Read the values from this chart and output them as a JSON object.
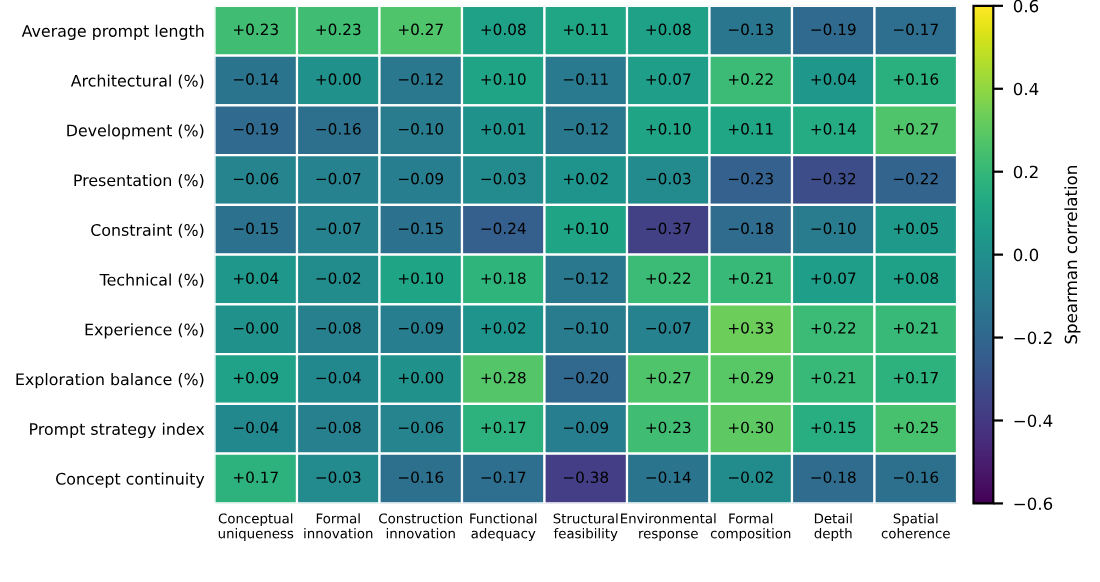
{
  "chart_data": {
    "type": "heatmap",
    "clabel": "Spearman correlation",
    "categories": [
      "Conceptual\nuniqueness",
      "Formal\ninnovation",
      "Construction\ninnovation",
      "Functional\nadequacy",
      "Structural\nfeasibility",
      "Environmental\nresponse",
      "Formal\ncomposition",
      "Detail\ndepth",
      "Spatial\ncoherence"
    ],
    "y_categories": [
      "Average prompt length",
      "Architectural (%)",
      "Development (%)",
      "Presentation (%)",
      "Constraint (%)",
      "Technical (%)",
      "Experience (%)",
      "Exploration balance (%)",
      "Prompt strategy index",
      "Concept continuity"
    ],
    "cells": [
      [
        0.23,
        0.23,
        0.27,
        0.08,
        0.11,
        0.08,
        -0.13,
        -0.19,
        -0.17
      ],
      [
        -0.14,
        0.0,
        -0.12,
        0.1,
        -0.11,
        0.07,
        0.22,
        0.04,
        0.16
      ],
      [
        -0.19,
        -0.16,
        -0.1,
        0.01,
        -0.12,
        0.1,
        0.11,
        0.14,
        0.27
      ],
      [
        -0.06,
        -0.07,
        -0.09,
        -0.03,
        0.02,
        -0.03,
        -0.23,
        -0.32,
        -0.22
      ],
      [
        -0.15,
        -0.07,
        -0.15,
        -0.24,
        0.1,
        -0.37,
        -0.18,
        -0.1,
        0.05
      ],
      [
        0.04,
        -0.02,
        0.1,
        0.18,
        -0.12,
        0.22,
        0.21,
        0.07,
        0.08
      ],
      [
        0.0,
        -0.08,
        -0.09,
        0.02,
        -0.1,
        -0.07,
        0.33,
        0.22,
        0.21
      ],
      [
        0.09,
        -0.04,
        0.0,
        0.28,
        -0.2,
        0.27,
        0.29,
        0.21,
        0.17
      ],
      [
        -0.04,
        -0.08,
        -0.06,
        0.17,
        -0.09,
        0.23,
        0.3,
        0.15,
        0.25
      ],
      [
        0.17,
        -0.03,
        -0.16,
        -0.17,
        -0.38,
        -0.14,
        -0.02,
        -0.18,
        -0.16
      ]
    ],
    "cell_labels": [
      [
        "+0.23",
        "+0.23",
        "+0.27",
        "+0.08",
        "+0.11",
        "+0.08",
        "−0.13",
        "−0.19",
        "−0.17"
      ],
      [
        "−0.14",
        "+0.00",
        "−0.12",
        "+0.10",
        "−0.11",
        "+0.07",
        "+0.22",
        "+0.04",
        "+0.16"
      ],
      [
        "−0.19",
        "−0.16",
        "−0.10",
        "+0.01",
        "−0.12",
        "+0.10",
        "+0.11",
        "+0.14",
        "+0.27"
      ],
      [
        "−0.06",
        "−0.07",
        "−0.09",
        "−0.03",
        "+0.02",
        "−0.03",
        "−0.23",
        "−0.32",
        "−0.22"
      ],
      [
        "−0.15",
        "−0.07",
        "−0.15",
        "−0.24",
        "+0.10",
        "−0.37",
        "−0.18",
        "−0.10",
        "+0.05"
      ],
      [
        "+0.04",
        "−0.02",
        "+0.10",
        "+0.18",
        "−0.12",
        "+0.22",
        "+0.21",
        "+0.07",
        "+0.08"
      ],
      [
        "−0.00",
        "−0.08",
        "−0.09",
        "+0.02",
        "−0.10",
        "−0.07",
        "+0.33",
        "+0.22",
        "+0.21"
      ],
      [
        "+0.09",
        "−0.04",
        "+0.00",
        "+0.28",
        "−0.20",
        "+0.27",
        "+0.29",
        "+0.21",
        "+0.17"
      ],
      [
        "−0.04",
        "−0.08",
        "−0.06",
        "+0.17",
        "−0.09",
        "+0.23",
        "+0.30",
        "+0.15",
        "+0.25"
      ],
      [
        "+0.17",
        "−0.03",
        "−0.16",
        "−0.17",
        "−0.38",
        "−0.14",
        "−0.02",
        "−0.18",
        "−0.16"
      ]
    ],
    "clim": [
      -0.6,
      0.6
    ],
    "cticks": [
      {
        "value": -0.6,
        "label": "−0.6"
      },
      {
        "value": -0.4,
        "label": "−0.4"
      },
      {
        "value": -0.2,
        "label": "−0.2"
      },
      {
        "value": 0.0,
        "label": "0.0"
      },
      {
        "value": 0.2,
        "label": "0.2"
      },
      {
        "value": 0.4,
        "label": "0.4"
      },
      {
        "value": 0.6,
        "label": "0.6"
      }
    ]
  }
}
